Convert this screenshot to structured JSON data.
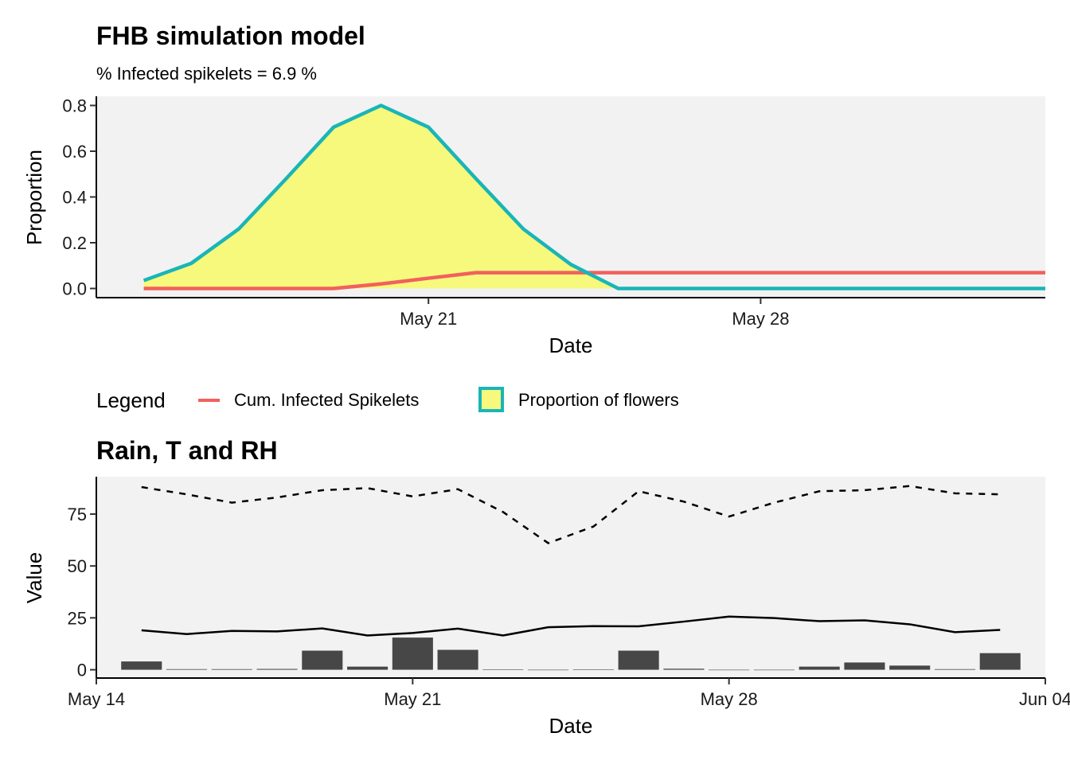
{
  "chart_data": [
    {
      "type": "area",
      "title": "FHB simulation model",
      "subtitle": "% Infected spikelets =  6.9 %",
      "xlabel": "Date",
      "ylabel": "Proportion",
      "x_ticks": [
        "May 21",
        "May 28"
      ],
      "y_ticks": [
        "0.0",
        "0.2",
        "0.4",
        "0.6",
        "0.8"
      ],
      "ylim": [
        -0.04,
        0.84
      ],
      "xlim": [
        "2023-05-14",
        "2023-06-03"
      ],
      "grid": false,
      "x": [
        "2023-05-15",
        "2023-05-16",
        "2023-05-17",
        "2023-05-18",
        "2023-05-19",
        "2023-05-20",
        "2023-05-21",
        "2023-05-22",
        "2023-05-23",
        "2023-05-24",
        "2023-05-25",
        "2023-05-26",
        "2023-05-27",
        "2023-05-28",
        "2023-05-29",
        "2023-05-30",
        "2023-05-31",
        "2023-06-01",
        "2023-06-02",
        "2023-06-03"
      ],
      "series": [
        {
          "name": "Proportion of flowers",
          "kind": "area",
          "color": "#19B5B8",
          "fill": "#F7F97C",
          "values": [
            0.035,
            0.11,
            0.26,
            0.48,
            0.705,
            0.8,
            0.705,
            0.48,
            0.26,
            0.105,
            0.0,
            0.0,
            0.0,
            0.0,
            0.0,
            0.0,
            0.0,
            0.0,
            0.0,
            0.0
          ]
        },
        {
          "name": "Cum. Infected Spikelets",
          "kind": "line",
          "color": "#F2605C",
          "values": [
            0.0,
            0.0,
            0.0,
            0.0,
            0.0,
            0.02,
            0.045,
            0.069,
            0.069,
            0.069,
            0.069,
            0.069,
            0.069,
            0.069,
            0.069,
            0.069,
            0.069,
            0.069,
            0.069,
            0.069
          ]
        }
      ],
      "legend": {
        "title": "Legend",
        "position": "bottom",
        "items": [
          {
            "label": "Cum. Infected Spikelets",
            "key": "line",
            "color": "#F2605C"
          },
          {
            "label": "Proportion of flowers",
            "key": "box",
            "color": "#19B5B8",
            "fill": "#F7F97C"
          }
        ]
      }
    },
    {
      "type": "bar",
      "title": "Rain, T and RH",
      "xlabel": "Date",
      "ylabel": "Value",
      "x_ticks": [
        "May 14",
        "May 21",
        "May 28",
        "Jun 04"
      ],
      "y_ticks": [
        "0",
        "25",
        "50",
        "75"
      ],
      "ylim": [
        -4,
        93
      ],
      "xlim": [
        "2023-05-14",
        "2023-06-04"
      ],
      "grid": false,
      "x": [
        "2023-05-15",
        "2023-05-16",
        "2023-05-17",
        "2023-05-18",
        "2023-05-19",
        "2023-05-20",
        "2023-05-21",
        "2023-05-22",
        "2023-05-23",
        "2023-05-24",
        "2023-05-25",
        "2023-05-26",
        "2023-05-27",
        "2023-05-28",
        "2023-05-29",
        "2023-05-30",
        "2023-05-31",
        "2023-06-01",
        "2023-06-02",
        "2023-06-03"
      ],
      "series": [
        {
          "name": "Rain",
          "kind": "bar",
          "color": "#474747",
          "values": [
            4.0,
            0.3,
            0.3,
            0.4,
            9.2,
            1.5,
            15.5,
            9.6,
            0.2,
            0.0,
            0.2,
            9.2,
            0.5,
            0.0,
            0.0,
            1.5,
            3.5,
            2.0,
            0.3,
            8.0
          ]
        },
        {
          "name": "T",
          "kind": "line",
          "color": "#000000",
          "dash": "solid",
          "values": [
            19.0,
            17.2,
            18.7,
            18.5,
            19.9,
            16.5,
            17.7,
            19.8,
            16.5,
            20.5,
            21.0,
            20.9,
            23.2,
            25.6,
            24.9,
            23.4,
            23.8,
            21.9,
            18.1,
            19.2
          ]
        },
        {
          "name": "RH",
          "kind": "line",
          "color": "#000000",
          "dash": "dashed",
          "values": [
            88.0,
            84.5,
            80.5,
            83.0,
            86.5,
            87.5,
            83.5,
            87.0,
            76.0,
            61.0,
            69.0,
            86.0,
            81.0,
            73.8,
            80.5,
            86.0,
            86.5,
            88.5,
            85.0,
            84.5
          ]
        }
      ]
    }
  ]
}
